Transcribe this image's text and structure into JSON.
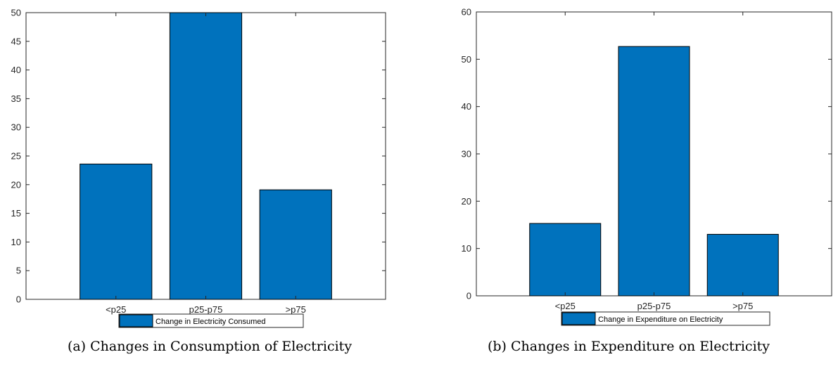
{
  "chart_data": [
    {
      "type": "bar",
      "caption": "(a) Changes in Consumption of Electricity",
      "categories": [
        "<p25",
        "p25-p75",
        ">p75"
      ],
      "series": [
        {
          "name": "Change in Electricity Consumed",
          "values": [
            23.6,
            50.0,
            19.1
          ]
        }
      ],
      "ylim": [
        0,
        50
      ],
      "yticks": [
        0,
        5,
        10,
        15,
        20,
        25,
        30,
        35,
        40,
        45,
        50
      ],
      "xlim": [
        0,
        4
      ],
      "grid": false,
      "legend_position": "bottom",
      "color": "#0072BD"
    },
    {
      "type": "bar",
      "caption": "(b) Changes in Expenditure on Electricity",
      "categories": [
        "<p25",
        "p25-p75",
        ">p75"
      ],
      "series": [
        {
          "name": "Change in Expenditure on Electricity",
          "values": [
            15.3,
            52.7,
            13.0
          ]
        }
      ],
      "ylim": [
        0,
        60
      ],
      "yticks": [
        0,
        10,
        20,
        30,
        40,
        50,
        60
      ],
      "xlim": [
        0,
        4
      ],
      "grid": false,
      "legend_position": "bottom",
      "color": "#0072BD"
    }
  ]
}
